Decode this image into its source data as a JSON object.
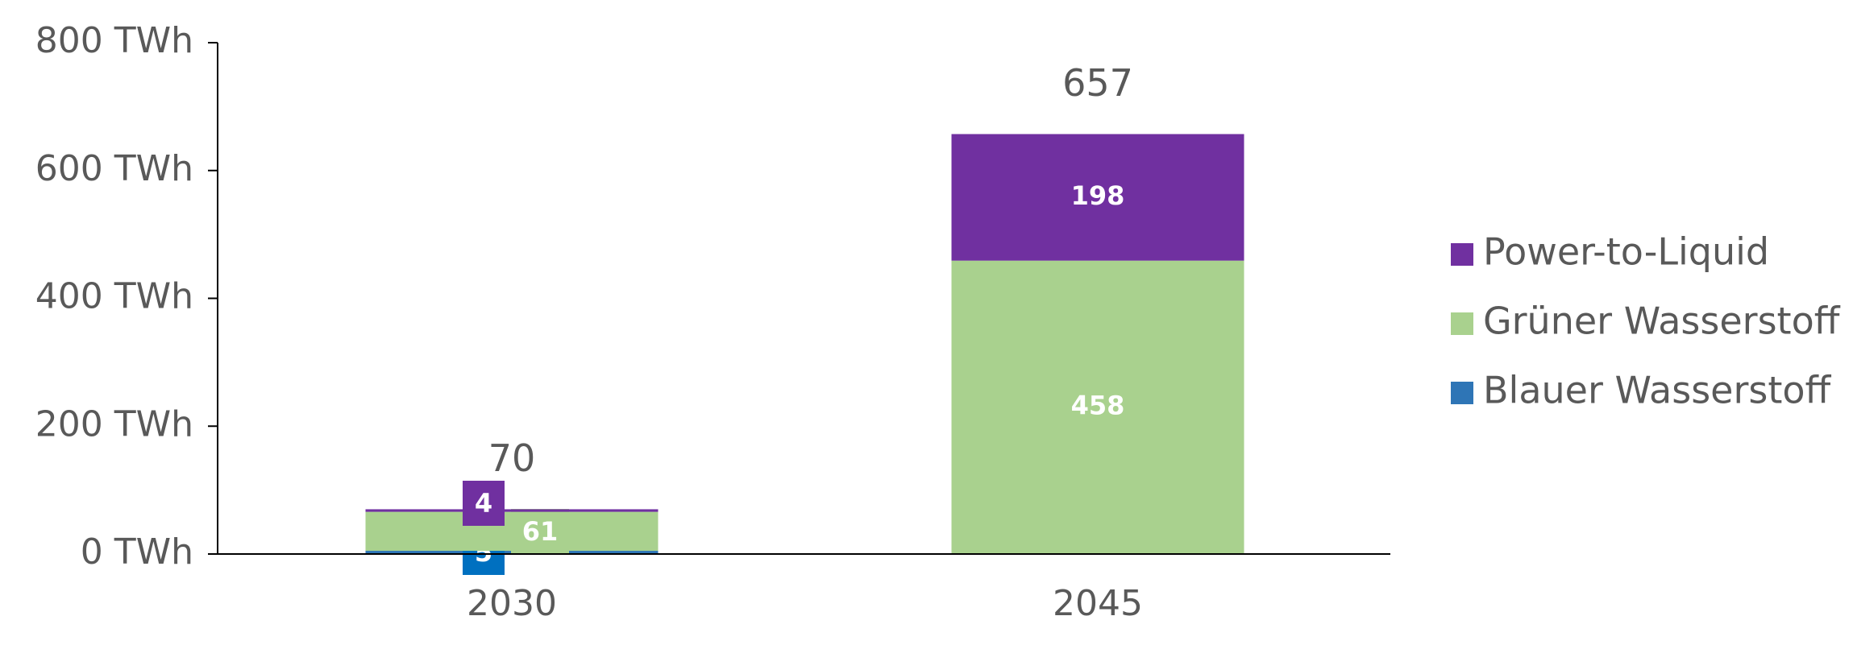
{
  "chart_data": {
    "type": "stacked_bar",
    "categories": [
      "2030",
      "2045"
    ],
    "series": [
      {
        "name": "Blauer Wasserstoff",
        "color": "#2e75b6",
        "values": [
          5,
          1
        ]
      },
      {
        "name": "Grüner Wasserstoff",
        "color": "#a9d18e",
        "values": [
          61,
          458
        ]
      },
      {
        "name": "Power-to-Liquid",
        "color": "#7030a0",
        "values": [
          4,
          198
        ]
      }
    ],
    "totals": [
      70,
      657
    ],
    "ylim": [
      0,
      800
    ],
    "yticks": [
      {
        "value": 0,
        "label": "0 TWh"
      },
      {
        "value": 200,
        "label": "200 TWh"
      },
      {
        "value": 400,
        "label": "400 TWh"
      },
      {
        "value": 600,
        "label": "600 TWh"
      },
      {
        "value": 800,
        "label": "800 TWh"
      }
    ],
    "legend": "right"
  }
}
